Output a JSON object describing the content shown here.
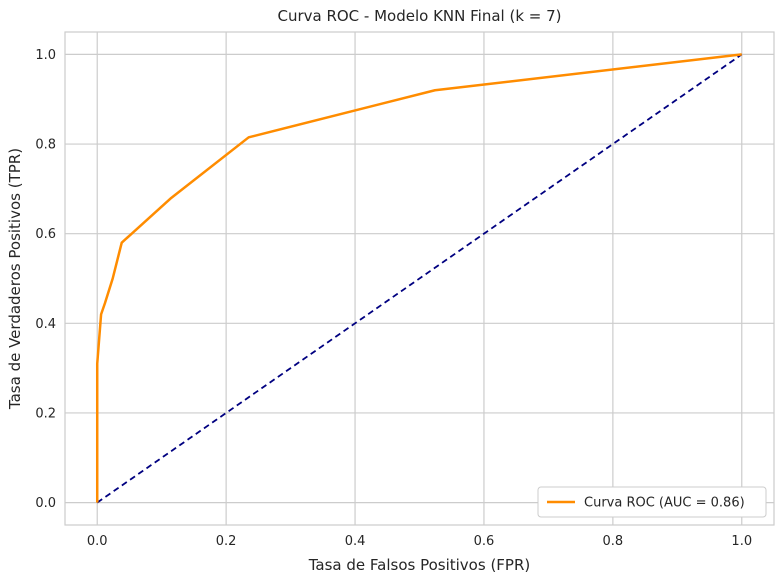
{
  "chart_data": {
    "type": "line",
    "title": "Curva ROC - Modelo KNN Final (k = 7)",
    "xlabel": "Tasa de Falsos Positivos (FPR)",
    "ylabel": "Tasa de Verdaderos Positivos (TPR)",
    "xlim": [
      -0.05,
      1.05
    ],
    "ylim": [
      -0.05,
      1.05
    ],
    "xticks": [
      0.0,
      0.2,
      0.4,
      0.6,
      0.8,
      1.0
    ],
    "yticks": [
      0.0,
      0.2,
      0.4,
      0.6,
      0.8,
      1.0
    ],
    "xtick_labels": [
      "0.0",
      "0.2",
      "0.4",
      "0.6",
      "0.8",
      "1.0"
    ],
    "ytick_labels": [
      "0.0",
      "0.2",
      "0.4",
      "0.6",
      "0.8",
      "1.0"
    ],
    "grid": true,
    "legend_position": "lower-right",
    "series": [
      {
        "name": "Curva ROC (AUC = 0.86)",
        "color": "#ff8c00",
        "style": "solid",
        "x": [
          0.0,
          0.0,
          0.0,
          0.006,
          0.012,
          0.024,
          0.038,
          0.115,
          0.235,
          0.524,
          1.0
        ],
        "y": [
          0.0,
          0.22,
          0.31,
          0.42,
          0.445,
          0.5,
          0.58,
          0.68,
          0.815,
          0.92,
          1.0
        ]
      },
      {
        "name": "",
        "color": "#000080",
        "style": "dashed",
        "x": [
          0.0,
          1.0
        ],
        "y": [
          0.0,
          1.0
        ]
      }
    ]
  }
}
